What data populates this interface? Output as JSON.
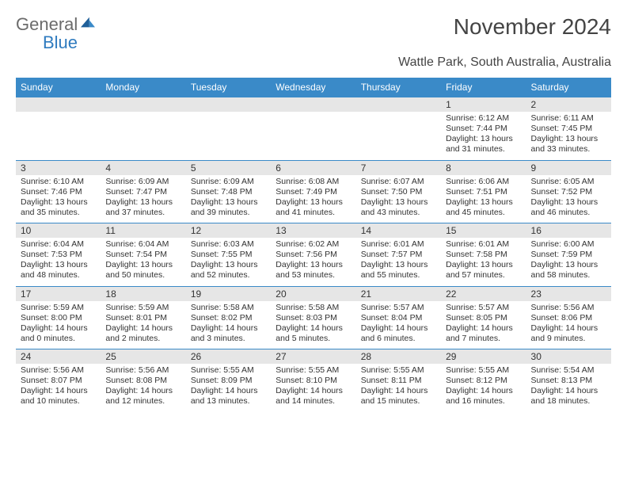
{
  "logo": {
    "text_general": "General",
    "text_blue": "Blue"
  },
  "header": {
    "title": "November 2024",
    "subtitle": "Wattle Park, South Australia, Australia",
    "title_color": "#444444",
    "title_fontsize": 28,
    "subtitle_fontsize": 16
  },
  "colors": {
    "header_bg": "#3a8ac8",
    "header_text": "#ffffff",
    "daynum_bg": "#e6e6e6",
    "row_border": "#3a8ac8",
    "body_text": "#333333",
    "logo_gray": "#6b6b6b",
    "logo_blue": "#2f7bbf",
    "background": "#ffffff"
  },
  "daynames": [
    "Sunday",
    "Monday",
    "Tuesday",
    "Wednesday",
    "Thursday",
    "Friday",
    "Saturday"
  ],
  "weeks": [
    [
      {
        "n": "",
        "sunrise": "",
        "sunset": "",
        "daylight1": "",
        "daylight2": ""
      },
      {
        "n": "",
        "sunrise": "",
        "sunset": "",
        "daylight1": "",
        "daylight2": ""
      },
      {
        "n": "",
        "sunrise": "",
        "sunset": "",
        "daylight1": "",
        "daylight2": ""
      },
      {
        "n": "",
        "sunrise": "",
        "sunset": "",
        "daylight1": "",
        "daylight2": ""
      },
      {
        "n": "",
        "sunrise": "",
        "sunset": "",
        "daylight1": "",
        "daylight2": ""
      },
      {
        "n": "1",
        "sunrise": "Sunrise: 6:12 AM",
        "sunset": "Sunset: 7:44 PM",
        "daylight1": "Daylight: 13 hours",
        "daylight2": "and 31 minutes."
      },
      {
        "n": "2",
        "sunrise": "Sunrise: 6:11 AM",
        "sunset": "Sunset: 7:45 PM",
        "daylight1": "Daylight: 13 hours",
        "daylight2": "and 33 minutes."
      }
    ],
    [
      {
        "n": "3",
        "sunrise": "Sunrise: 6:10 AM",
        "sunset": "Sunset: 7:46 PM",
        "daylight1": "Daylight: 13 hours",
        "daylight2": "and 35 minutes."
      },
      {
        "n": "4",
        "sunrise": "Sunrise: 6:09 AM",
        "sunset": "Sunset: 7:47 PM",
        "daylight1": "Daylight: 13 hours",
        "daylight2": "and 37 minutes."
      },
      {
        "n": "5",
        "sunrise": "Sunrise: 6:09 AM",
        "sunset": "Sunset: 7:48 PM",
        "daylight1": "Daylight: 13 hours",
        "daylight2": "and 39 minutes."
      },
      {
        "n": "6",
        "sunrise": "Sunrise: 6:08 AM",
        "sunset": "Sunset: 7:49 PM",
        "daylight1": "Daylight: 13 hours",
        "daylight2": "and 41 minutes."
      },
      {
        "n": "7",
        "sunrise": "Sunrise: 6:07 AM",
        "sunset": "Sunset: 7:50 PM",
        "daylight1": "Daylight: 13 hours",
        "daylight2": "and 43 minutes."
      },
      {
        "n": "8",
        "sunrise": "Sunrise: 6:06 AM",
        "sunset": "Sunset: 7:51 PM",
        "daylight1": "Daylight: 13 hours",
        "daylight2": "and 45 minutes."
      },
      {
        "n": "9",
        "sunrise": "Sunrise: 6:05 AM",
        "sunset": "Sunset: 7:52 PM",
        "daylight1": "Daylight: 13 hours",
        "daylight2": "and 46 minutes."
      }
    ],
    [
      {
        "n": "10",
        "sunrise": "Sunrise: 6:04 AM",
        "sunset": "Sunset: 7:53 PM",
        "daylight1": "Daylight: 13 hours",
        "daylight2": "and 48 minutes."
      },
      {
        "n": "11",
        "sunrise": "Sunrise: 6:04 AM",
        "sunset": "Sunset: 7:54 PM",
        "daylight1": "Daylight: 13 hours",
        "daylight2": "and 50 minutes."
      },
      {
        "n": "12",
        "sunrise": "Sunrise: 6:03 AM",
        "sunset": "Sunset: 7:55 PM",
        "daylight1": "Daylight: 13 hours",
        "daylight2": "and 52 minutes."
      },
      {
        "n": "13",
        "sunrise": "Sunrise: 6:02 AM",
        "sunset": "Sunset: 7:56 PM",
        "daylight1": "Daylight: 13 hours",
        "daylight2": "and 53 minutes."
      },
      {
        "n": "14",
        "sunrise": "Sunrise: 6:01 AM",
        "sunset": "Sunset: 7:57 PM",
        "daylight1": "Daylight: 13 hours",
        "daylight2": "and 55 minutes."
      },
      {
        "n": "15",
        "sunrise": "Sunrise: 6:01 AM",
        "sunset": "Sunset: 7:58 PM",
        "daylight1": "Daylight: 13 hours",
        "daylight2": "and 57 minutes."
      },
      {
        "n": "16",
        "sunrise": "Sunrise: 6:00 AM",
        "sunset": "Sunset: 7:59 PM",
        "daylight1": "Daylight: 13 hours",
        "daylight2": "and 58 minutes."
      }
    ],
    [
      {
        "n": "17",
        "sunrise": "Sunrise: 5:59 AM",
        "sunset": "Sunset: 8:00 PM",
        "daylight1": "Daylight: 14 hours",
        "daylight2": "and 0 minutes."
      },
      {
        "n": "18",
        "sunrise": "Sunrise: 5:59 AM",
        "sunset": "Sunset: 8:01 PM",
        "daylight1": "Daylight: 14 hours",
        "daylight2": "and 2 minutes."
      },
      {
        "n": "19",
        "sunrise": "Sunrise: 5:58 AM",
        "sunset": "Sunset: 8:02 PM",
        "daylight1": "Daylight: 14 hours",
        "daylight2": "and 3 minutes."
      },
      {
        "n": "20",
        "sunrise": "Sunrise: 5:58 AM",
        "sunset": "Sunset: 8:03 PM",
        "daylight1": "Daylight: 14 hours",
        "daylight2": "and 5 minutes."
      },
      {
        "n": "21",
        "sunrise": "Sunrise: 5:57 AM",
        "sunset": "Sunset: 8:04 PM",
        "daylight1": "Daylight: 14 hours",
        "daylight2": "and 6 minutes."
      },
      {
        "n": "22",
        "sunrise": "Sunrise: 5:57 AM",
        "sunset": "Sunset: 8:05 PM",
        "daylight1": "Daylight: 14 hours",
        "daylight2": "and 7 minutes."
      },
      {
        "n": "23",
        "sunrise": "Sunrise: 5:56 AM",
        "sunset": "Sunset: 8:06 PM",
        "daylight1": "Daylight: 14 hours",
        "daylight2": "and 9 minutes."
      }
    ],
    [
      {
        "n": "24",
        "sunrise": "Sunrise: 5:56 AM",
        "sunset": "Sunset: 8:07 PM",
        "daylight1": "Daylight: 14 hours",
        "daylight2": "and 10 minutes."
      },
      {
        "n": "25",
        "sunrise": "Sunrise: 5:56 AM",
        "sunset": "Sunset: 8:08 PM",
        "daylight1": "Daylight: 14 hours",
        "daylight2": "and 12 minutes."
      },
      {
        "n": "26",
        "sunrise": "Sunrise: 5:55 AM",
        "sunset": "Sunset: 8:09 PM",
        "daylight1": "Daylight: 14 hours",
        "daylight2": "and 13 minutes."
      },
      {
        "n": "27",
        "sunrise": "Sunrise: 5:55 AM",
        "sunset": "Sunset: 8:10 PM",
        "daylight1": "Daylight: 14 hours",
        "daylight2": "and 14 minutes."
      },
      {
        "n": "28",
        "sunrise": "Sunrise: 5:55 AM",
        "sunset": "Sunset: 8:11 PM",
        "daylight1": "Daylight: 14 hours",
        "daylight2": "and 15 minutes."
      },
      {
        "n": "29",
        "sunrise": "Sunrise: 5:55 AM",
        "sunset": "Sunset: 8:12 PM",
        "daylight1": "Daylight: 14 hours",
        "daylight2": "and 16 minutes."
      },
      {
        "n": "30",
        "sunrise": "Sunrise: 5:54 AM",
        "sunset": "Sunset: 8:13 PM",
        "daylight1": "Daylight: 14 hours",
        "daylight2": "and 18 minutes."
      }
    ]
  ]
}
